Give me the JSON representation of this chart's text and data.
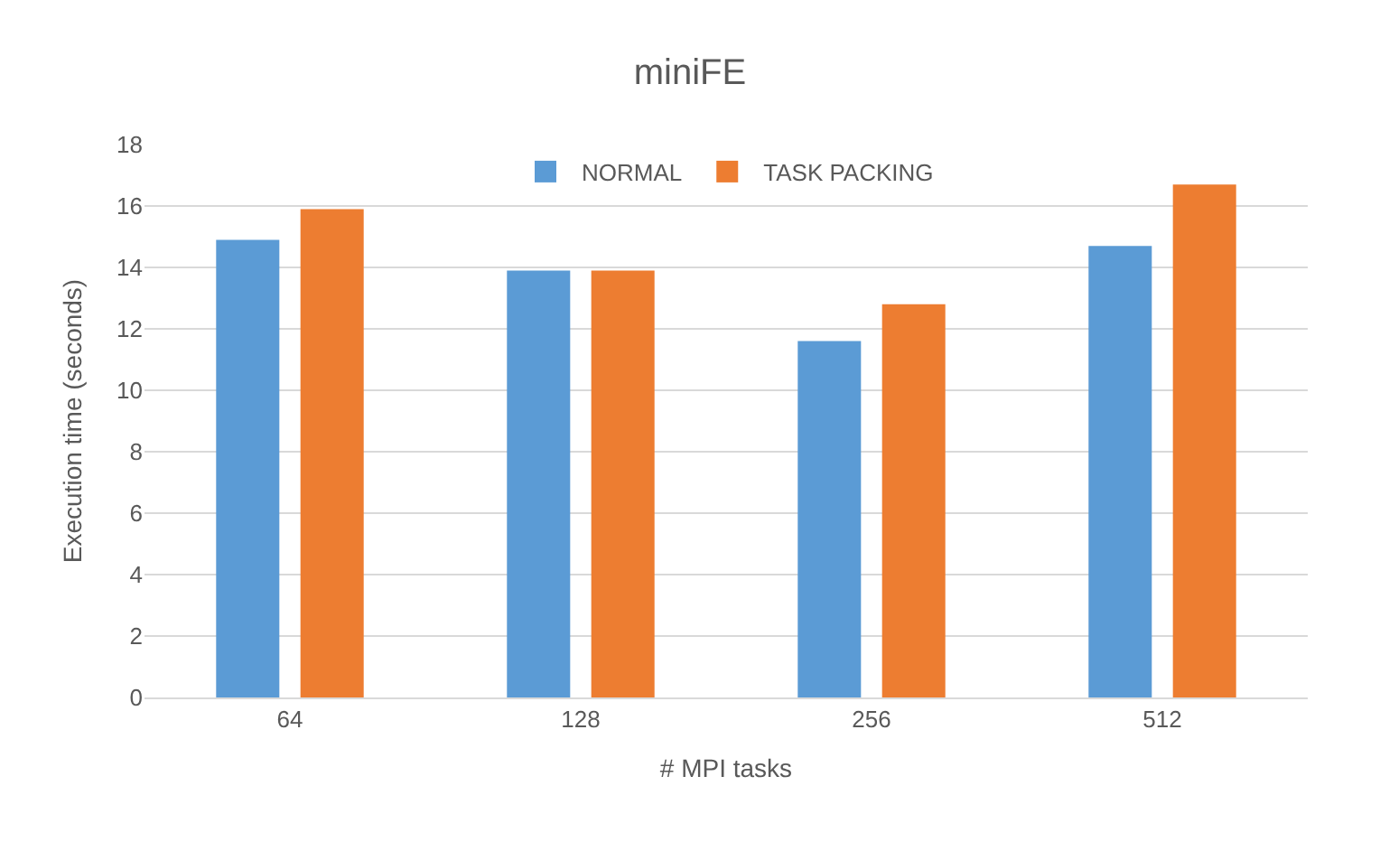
{
  "chart_data": {
    "type": "bar",
    "title": "miniFE",
    "xlabel": "# MPI tasks",
    "ylabel": "Execution time (seconds)",
    "categories": [
      "64",
      "128",
      "256",
      "512"
    ],
    "series": [
      {
        "name": "NORMAL",
        "color": "#5b9bd5",
        "values": [
          14.9,
          13.9,
          11.6,
          14.7
        ]
      },
      {
        "name": "TASK PACKING",
        "color": "#ed7d31",
        "values": [
          15.9,
          13.9,
          12.8,
          16.7
        ]
      }
    ],
    "ylim": [
      0,
      18
    ],
    "yticks": [
      0,
      2,
      4,
      6,
      8,
      10,
      12,
      14,
      16,
      18
    ],
    "grid": "y",
    "legend": "top"
  }
}
